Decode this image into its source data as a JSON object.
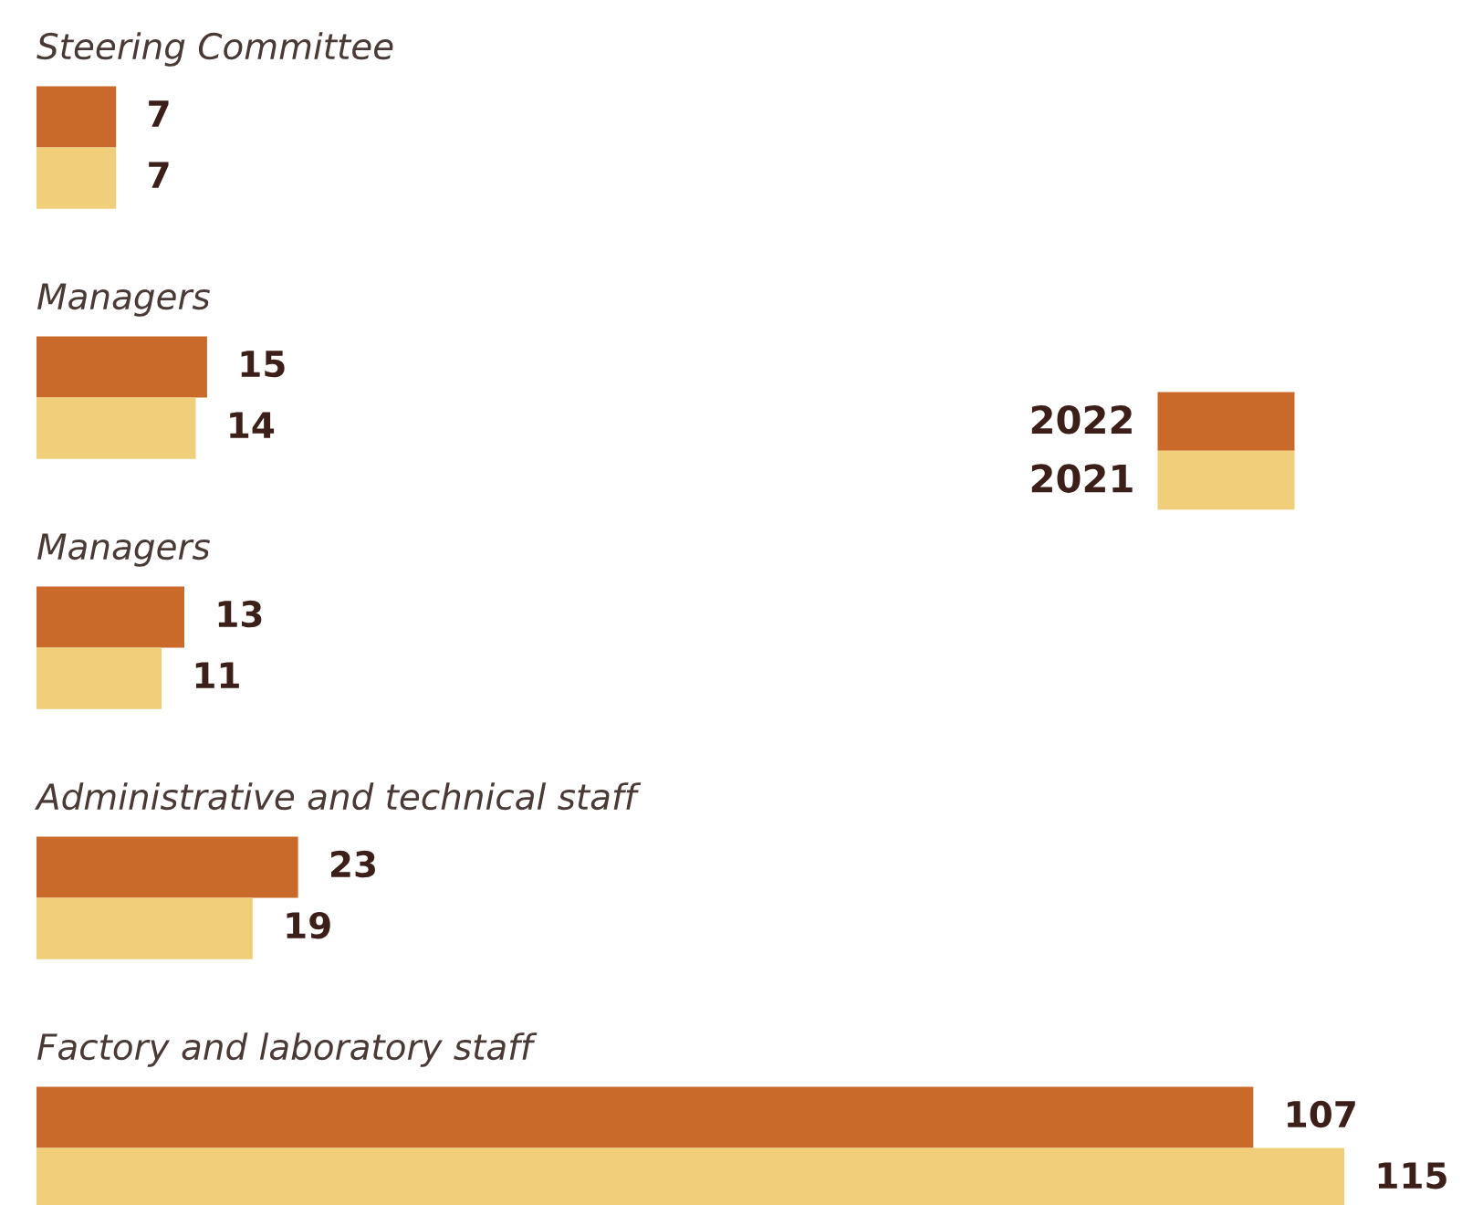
{
  "chart_data": {
    "type": "bar",
    "orientation": "horizontal",
    "categories": [
      "Steering Committee",
      "Managers",
      "Managers",
      "Administrative and technical staff",
      "Factory and laboratory staff"
    ],
    "series": [
      {
        "name": "2022",
        "color": "#c96a2b",
        "values": [
          7,
          15,
          13,
          23,
          107
        ]
      },
      {
        "name": "2021",
        "color": "#f1cf7a",
        "values": [
          7,
          14,
          11,
          19,
          115
        ]
      }
    ],
    "data_labels": true,
    "legend": "right"
  }
}
